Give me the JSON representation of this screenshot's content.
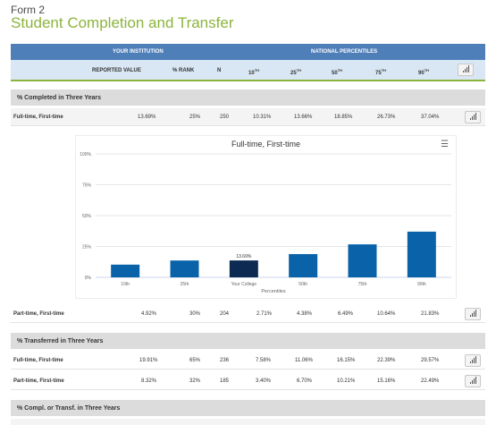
{
  "form_label": "Form 2",
  "title": "Student Completion and Transfer",
  "header": {
    "your_institution": "YOUR INSTITUTION",
    "national_percentiles": "NATIONAL PERCENTILES",
    "reported_value": "REPORTED VALUE",
    "pct_rank": "% RANK",
    "n": "N",
    "p10": "10",
    "p25": "25",
    "p50": "50",
    "p75": "75",
    "p90": "90",
    "sup": "TH"
  },
  "sections": [
    {
      "label": "% Completed in Three Years",
      "rows": [
        {
          "name": "Full-time, First-time",
          "value": "13.69%",
          "rank": "25%",
          "n": "250",
          "p10": "10.31%",
          "p25": "13.66%",
          "p50": "18.85%",
          "p75": "26.73%",
          "p90": "37.04%"
        },
        {
          "name": "Part-time, First-time",
          "value": "4.92%",
          "rank": "30%",
          "n": "204",
          "p10": "2.71%",
          "p25": "4.38%",
          "p50": "6.49%",
          "p75": "10.64%",
          "p90": "21.83%"
        }
      ]
    },
    {
      "label": "% Transferred in Three Years",
      "rows": [
        {
          "name": "Full-time, First-time",
          "value": "19.91%",
          "rank": "65%",
          "n": "236",
          "p10": "7.58%",
          "p25": "11.06%",
          "p50": "16.15%",
          "p75": "22.39%",
          "p90": "29.57%"
        },
        {
          "name": "Part-time, First-time",
          "value": "8.32%",
          "rank": "32%",
          "n": "185",
          "p10": "3.40%",
          "p25": "6.70%",
          "p50": "10.21%",
          "p75": "15.16%",
          "p90": "22.49%"
        }
      ]
    },
    {
      "label": "% Compl. or Transf. in Three Years",
      "rows": []
    }
  ],
  "chart_data": {
    "type": "bar",
    "title": "Full-time, First-time",
    "categories": [
      "10th",
      "25th",
      "Your College",
      "50th",
      "75th",
      "90th"
    ],
    "values": [
      10.31,
      13.66,
      13.69,
      18.85,
      26.73,
      37.04
    ],
    "highlight_index": 2,
    "highlight_label": "13.69%",
    "xlabel": "Percentiles",
    "ylabel": "",
    "ylim": [
      0,
      100
    ],
    "yticks": [
      "0%",
      "25%",
      "50%",
      "75%",
      "100%"
    ],
    "colors": {
      "bar": "#0a63a8",
      "highlight": "#0d2a52"
    },
    "menu_icon": "hamburger-menu-icon"
  }
}
